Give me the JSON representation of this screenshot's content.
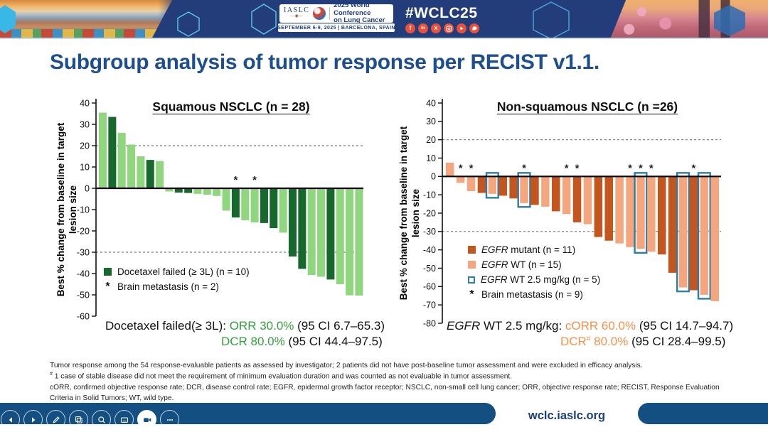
{
  "header": {
    "iaslc": "IASLC",
    "conference_line1": "2025 World Conference",
    "conference_line2": "on Lung Cancer",
    "date_location": "SEPTEMBER 6-9, 2025  |  BARCELONA, SPAIN",
    "hashtag": "#WCLC25",
    "brand_blue": "#223d7a",
    "social_red": "#e8513b"
  },
  "slide": {
    "title": "Subgroup analysis of tumor response per RECIST v1.1."
  },
  "chart_data": [
    {
      "type": "bar",
      "title": "Squamous NSCLC (n = 28)",
      "ylabel": "Best % change from baseline in target lesion size",
      "ylabel_lines": [
        "Best % change from baseline in target",
        "lesion size"
      ],
      "ylim": [
        -60,
        40
      ],
      "ytick_step": 10,
      "reference_lines": [
        20,
        -30
      ],
      "grid": "dashed-reference-only",
      "legend_position": "inside-lower-left",
      "colors": {
        "docetaxel_failed_3L": "#17682c",
        "other": "#8fd67e"
      },
      "legend": [
        {
          "marker": "square",
          "marker_char": "",
          "italic": "",
          "label": "Docetaxel failed (≥ 3L) (n = 10)"
        },
        {
          "marker": "asterisk",
          "marker_char": "*",
          "italic": "",
          "label": "Brain metastasis (n = 2)"
        }
      ],
      "bars": [
        {
          "value": 35.5,
          "group": "other"
        },
        {
          "value": 33.5,
          "group": "docetaxel_failed_3L"
        },
        {
          "value": 26.0,
          "group": "other"
        },
        {
          "value": 20.5,
          "group": "other"
        },
        {
          "value": 15.0,
          "group": "other"
        },
        {
          "value": 13.3,
          "group": "docetaxel_failed_3L"
        },
        {
          "value": 12.8,
          "group": "other"
        },
        {
          "value": -1.5,
          "group": "other"
        },
        {
          "value": -2.0,
          "group": "docetaxel_failed_3L"
        },
        {
          "value": -2.2,
          "group": "docetaxel_failed_3L"
        },
        {
          "value": -2.6,
          "group": "other"
        },
        {
          "value": -3.0,
          "group": "other"
        },
        {
          "value": -3.6,
          "group": "other"
        },
        {
          "value": -10.5,
          "group": "other"
        },
        {
          "value": -13.7,
          "group": "docetaxel_failed_3L",
          "brain_metastasis": true
        },
        {
          "value": -15.0,
          "group": "other"
        },
        {
          "value": -16.0,
          "group": "other",
          "brain_metastasis": true
        },
        {
          "value": -16.3,
          "group": "docetaxel_failed_3L"
        },
        {
          "value": -18.7,
          "group": "docetaxel_failed_3L"
        },
        {
          "value": -20.8,
          "group": "other"
        },
        {
          "value": -32.0,
          "group": "docetaxel_failed_3L"
        },
        {
          "value": -37.8,
          "group": "docetaxel_failed_3L"
        },
        {
          "value": -40.7,
          "group": "other"
        },
        {
          "value": -41.5,
          "group": "other"
        },
        {
          "value": -42.8,
          "group": "docetaxel_failed_3L"
        },
        {
          "value": -45.0,
          "group": "other"
        },
        {
          "value": -50.2,
          "group": "other"
        },
        {
          "value": -50.3,
          "group": "other"
        }
      ],
      "stats": {
        "label": "Docetaxel failed(≥ 3L): ",
        "orr": "ORR 30.0%",
        "orr_ci": " (95 CI 6.7–65.3)",
        "dcr": "DCR 80.0%",
        "dcr_ci": " (95 CI 44.4–97.5)",
        "highlight_color": "#339f3d"
      }
    },
    {
      "type": "bar",
      "title": "Non-squamous NSCLC (n =26)",
      "ylabel": "Best % change from baseline in target lesion size",
      "ylabel_lines": [
        "Best % change from baseline in target",
        "lesion size"
      ],
      "ylim": [
        -80,
        40
      ],
      "ytick_step": 10,
      "reference_lines": [
        20,
        -30
      ],
      "grid": "dashed-reference-only",
      "legend_position": "inside-lower-left",
      "colors": {
        "egfr_mutant": "#c2561e",
        "egfr_wt": "#f4a77e",
        "egfr_wt_2_5_box": "#2f7ca6"
      },
      "legend": [
        {
          "marker": "square",
          "marker_char": "",
          "italic": "EGFR",
          "label": " mutant (n = 11)"
        },
        {
          "marker": "square",
          "marker_char": "",
          "italic": "EGFR",
          "label": " WT (n = 15)"
        },
        {
          "marker": "outline-square",
          "marker_char": "",
          "italic": "EGFR",
          "label": " WT 2.5 mg/kg (n = 5)"
        },
        {
          "marker": "asterisk",
          "marker_char": "*",
          "italic": "",
          "label": "Brain metastasis (n = 9)"
        }
      ],
      "bars": [
        {
          "value": 7.5,
          "group": "egfr_wt"
        },
        {
          "value": -3.5,
          "group": "egfr_wt",
          "brain_metastasis": true
        },
        {
          "value": -8.0,
          "group": "egfr_wt",
          "brain_metastasis": true
        },
        {
          "value": -9.0,
          "group": "egfr_mutant"
        },
        {
          "value": -9.5,
          "group": "egfr_wt",
          "dose_2_5": true
        },
        {
          "value": -10.5,
          "group": "egfr_mutant"
        },
        {
          "value": -12.0,
          "group": "egfr_mutant"
        },
        {
          "value": -14.5,
          "group": "egfr_wt",
          "dose_2_5": true,
          "brain_metastasis": true
        },
        {
          "value": -15.5,
          "group": "egfr_mutant"
        },
        {
          "value": -16.5,
          "group": "egfr_wt"
        },
        {
          "value": -19.0,
          "group": "egfr_mutant"
        },
        {
          "value": -20.5,
          "group": "egfr_wt",
          "brain_metastasis": true
        },
        {
          "value": -25.0,
          "group": "egfr_mutant",
          "brain_metastasis": true
        },
        {
          "value": -26.0,
          "group": "egfr_wt"
        },
        {
          "value": -33.0,
          "group": "egfr_mutant"
        },
        {
          "value": -35.0,
          "group": "egfr_mutant"
        },
        {
          "value": -36.5,
          "group": "egfr_wt"
        },
        {
          "value": -38.5,
          "group": "egfr_wt",
          "brain_metastasis": true
        },
        {
          "value": -39.5,
          "group": "egfr_wt",
          "dose_2_5": true,
          "brain_metastasis": true
        },
        {
          "value": -41.0,
          "group": "egfr_wt",
          "brain_metastasis": true
        },
        {
          "value": -42.5,
          "group": "egfr_mutant"
        },
        {
          "value": -52.5,
          "group": "egfr_mutant"
        },
        {
          "value": -60.5,
          "group": "egfr_wt",
          "dose_2_5": true
        },
        {
          "value": -62.0,
          "group": "egfr_mutant",
          "brain_metastasis": true
        },
        {
          "value": -64.5,
          "group": "egfr_wt",
          "dose_2_5": true
        },
        {
          "value": -68.0,
          "group": "egfr_wt"
        }
      ],
      "stats": {
        "label_italic": "EGFR",
        "label_rest": " WT 2.5 mg/kg: ",
        "orr": "cORR 60.0%",
        "orr_ci": " (95 CI 14.7–94.7)",
        "dcr_main": "DCR",
        "dcr_sup": "#",
        "dcr_tail": " 80.0%",
        "dcr_ci": " (95 CI 28.4–99.5)",
        "highlight_color": "#f2914d"
      }
    }
  ],
  "footnotes": {
    "line1": "Tumor response among the 54 response-evaluable patients as assessed by investigator; 2 patients did not have post-baseline tumor assessment and were excluded in efficacy analysis.",
    "line2_sup": "#",
    "line2": " 1 case of stable disease did not meet the requirement of minimum evaluation duration and was counted as not evaluable in tumor assessment.",
    "line3": "cORR, confirmed objective response rate; DCR, disease control rate; EGFR, epidermal growth factor receptor; NSCLC, non-small cell lung cancer; ORR, objective response rate; RECIST, Response Evaluation Criteria in Solid Tumors; WT, wild type."
  },
  "footer": {
    "url": "wclc.iaslc.org",
    "band_color": "#134f80"
  }
}
